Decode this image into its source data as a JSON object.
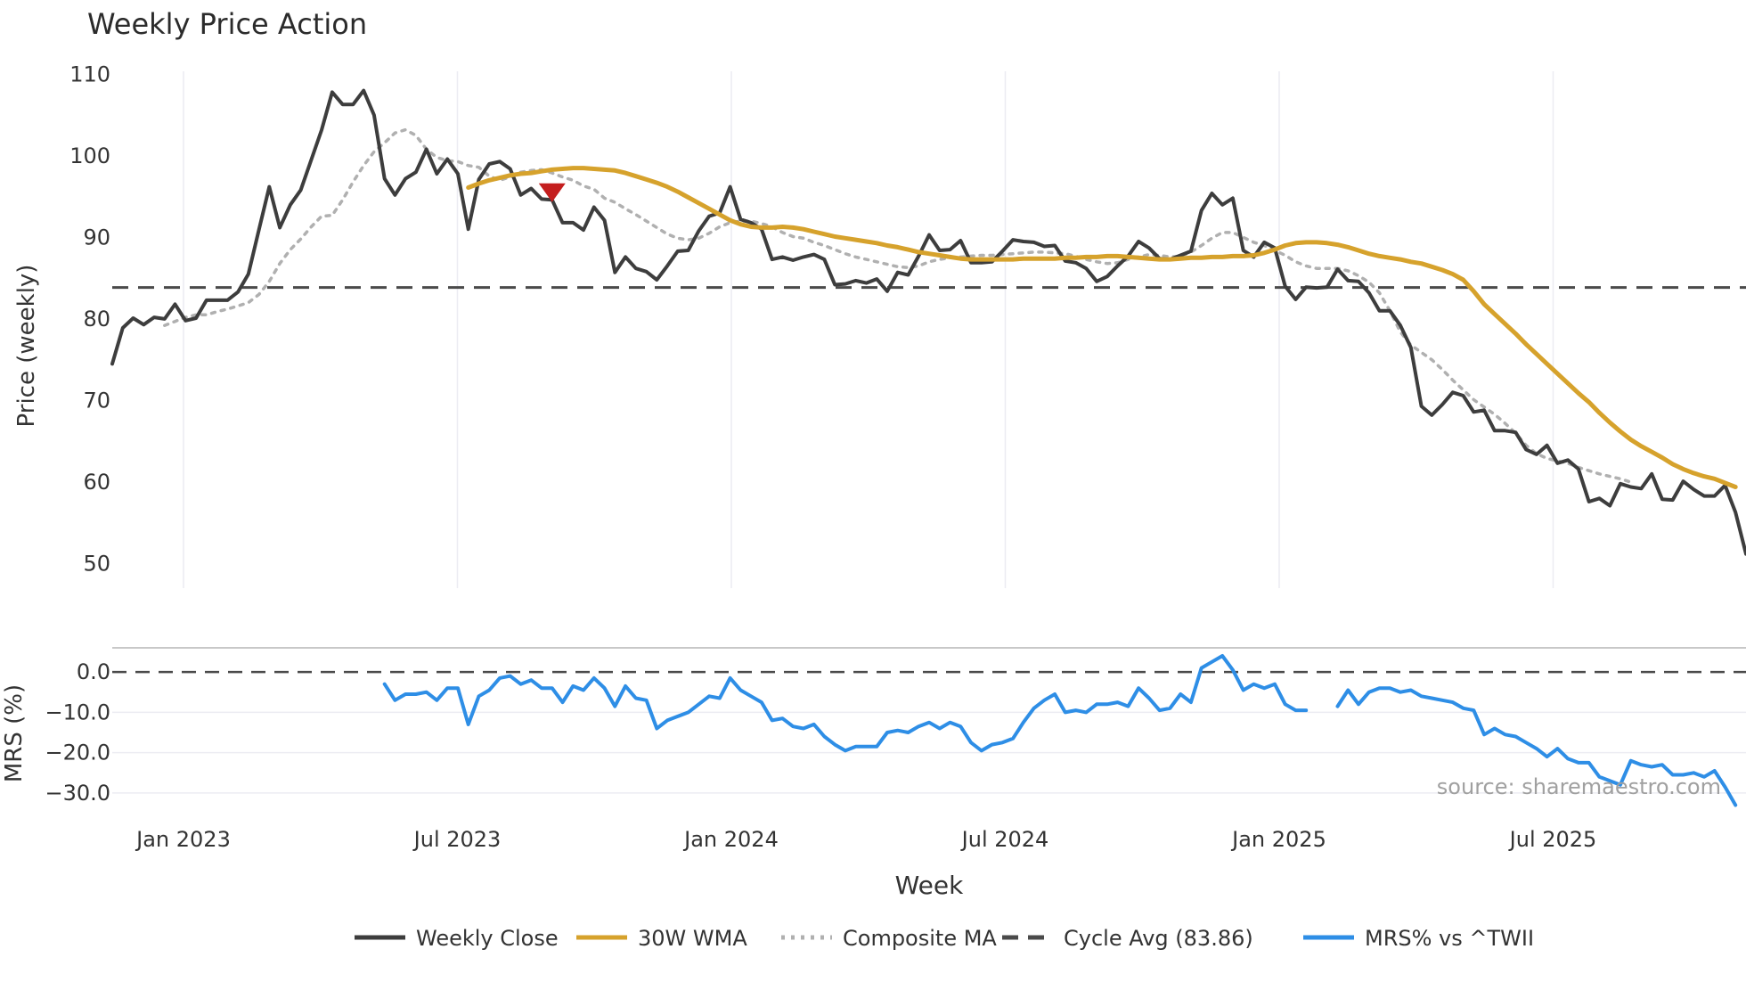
{
  "chart_data": [
    {
      "type": "line",
      "title": "Weekly Price Action",
      "xlabel": "Week",
      "ylabel": "Price (weekly)",
      "ylim": [
        47,
        112
      ],
      "yticks": [
        110,
        100,
        90,
        80,
        70,
        60,
        50
      ],
      "x_tick_labels": [
        "Jan 2023",
        "Jul 2023",
        "Jan 2024",
        "Jul 2024",
        "Jan 2025",
        "Jul 2025"
      ],
      "series": [
        {
          "name": "Weekly Close",
          "color": "#3d3d3d",
          "style": "solid",
          "values": [
            74.5,
            78.9,
            80.1,
            79.3,
            80.2,
            80.0,
            81.8,
            79.8,
            80.1,
            82.3,
            82.3,
            82.3,
            83.3,
            85.5,
            90.9,
            96.2,
            91.2,
            94.0,
            95.8,
            99.5,
            103.2,
            107.8,
            106.3,
            106.3,
            108.0,
            105.0,
            97.2,
            95.2,
            97.2,
            98.0,
            100.8,
            97.8,
            99.6,
            97.8,
            91.0,
            97.1,
            99.0,
            99.3,
            98.4,
            95.2,
            96.0,
            94.7,
            94.6,
            91.8,
            91.8,
            90.9,
            93.7,
            92.1,
            85.7,
            87.6,
            86.2,
            85.8,
            84.8,
            86.5,
            88.3,
            88.4,
            90.8,
            92.6,
            93.0,
            96.2,
            92.2,
            91.8,
            91.0,
            87.3,
            87.6,
            87.2,
            87.6,
            87.9,
            87.3,
            84.2,
            84.3,
            84.7,
            84.4,
            84.9,
            83.4,
            85.7,
            85.4,
            87.7,
            90.3,
            88.4,
            88.5,
            89.6,
            86.9,
            86.9,
            87.0,
            88.3,
            89.7,
            89.5,
            89.4,
            88.9,
            89.0,
            87.1,
            86.9,
            86.2,
            84.6,
            85.2,
            86.5,
            87.7,
            89.5,
            88.7,
            87.4,
            87.3,
            87.8,
            88.3,
            93.3,
            95.4,
            94.0,
            94.8,
            88.4,
            87.6,
            89.4,
            88.7,
            84.0,
            82.4,
            83.9,
            83.8,
            83.9,
            86.1,
            84.7,
            84.6,
            83.2,
            81.0,
            81.0,
            79.2,
            76.5,
            69.3,
            68.2,
            69.5,
            71.0,
            70.6,
            68.6,
            68.8,
            66.3,
            66.3,
            66.1,
            64.0,
            63.4,
            64.5,
            62.3,
            62.7,
            61.6,
            57.6,
            58.0,
            57.1,
            59.8,
            59.4,
            59.2,
            61.0,
            57.9,
            57.8,
            60.1,
            59.1,
            58.3,
            58.3,
            59.6,
            56.3,
            51.2
          ]
        },
        {
          "name": "30W WMA",
          "color": "#d6a22c",
          "style": "solid",
          "start_index": 34,
          "values": [
            96.1,
            96.6,
            97.0,
            97.3,
            97.6,
            97.8,
            97.9,
            98.1,
            98.3,
            98.4,
            98.5,
            98.5,
            98.4,
            98.3,
            98.2,
            97.9,
            97.5,
            97.1,
            96.7,
            96.2,
            95.6,
            94.9,
            94.2,
            93.5,
            92.8,
            92.1,
            91.6,
            91.3,
            91.2,
            91.2,
            91.3,
            91.2,
            91.0,
            90.7,
            90.4,
            90.1,
            89.9,
            89.7,
            89.5,
            89.3,
            89.0,
            88.8,
            88.5,
            88.2,
            88.0,
            87.8,
            87.6,
            87.4,
            87.3,
            87.3,
            87.3,
            87.3,
            87.3,
            87.4,
            87.4,
            87.4,
            87.4,
            87.5,
            87.5,
            87.6,
            87.6,
            87.7,
            87.7,
            87.6,
            87.5,
            87.4,
            87.3,
            87.3,
            87.4,
            87.5,
            87.5,
            87.6,
            87.6,
            87.7,
            87.7,
            87.8,
            88.1,
            88.5,
            89.0,
            89.3,
            89.4,
            89.4,
            89.3,
            89.1,
            88.8,
            88.4,
            88.0,
            87.7,
            87.5,
            87.3,
            87.0,
            86.8,
            86.4,
            86.0,
            85.5,
            84.8,
            83.4,
            81.8,
            80.6,
            79.4,
            78.2,
            76.9,
            75.7,
            74.5,
            73.3,
            72.1,
            70.9,
            69.8,
            68.5,
            67.3,
            66.2,
            65.2,
            64.4,
            63.7,
            63.0,
            62.2,
            61.6,
            61.1,
            60.7,
            60.4,
            59.9,
            59.4
          ]
        },
        {
          "name": "Composite MA",
          "color": "#b0b0b0",
          "style": "dotted",
          "start_index": 5,
          "values": [
            79.2,
            79.7,
            80.2,
            80.5,
            80.5,
            80.9,
            81.2,
            81.6,
            82.0,
            83.0,
            84.6,
            86.8,
            88.5,
            89.8,
            91.3,
            92.6,
            92.7,
            94.6,
            96.8,
            98.8,
            100.5,
            101.6,
            102.8,
            103.2,
            102.5,
            100.8,
            99.8,
            99.4,
            99.3,
            98.8,
            98.6,
            97.5,
            97.0,
            97.4,
            98.0,
            98.2,
            98.3,
            97.9,
            97.4,
            97.0,
            96.3,
            95.9,
            94.8,
            94.3,
            93.5,
            92.8,
            92.0,
            91.2,
            90.4,
            89.9,
            89.7,
            89.9,
            90.5,
            91.3,
            91.8,
            92.0,
            92.0,
            91.7,
            91.3,
            90.6,
            90.1,
            89.9,
            89.4,
            89.0,
            88.5,
            88.0,
            87.6,
            87.3,
            87.0,
            86.7,
            86.4,
            86.3,
            86.5,
            87.0,
            87.3,
            87.5,
            87.6,
            87.7,
            87.8,
            87.8,
            87.9,
            88.0,
            88.1,
            88.2,
            88.2,
            88.1,
            88.0,
            87.7,
            87.3,
            87.0,
            86.8,
            86.9,
            87.3,
            87.6,
            87.9,
            87.8,
            87.6,
            87.7,
            88.2,
            89.0,
            89.9,
            90.6,
            90.6,
            90.0,
            89.4,
            89.0,
            88.4,
            87.8,
            87.0,
            86.5,
            86.2,
            86.2,
            86.2,
            85.9,
            85.3,
            84.5,
            83.2,
            81.0,
            78.4,
            76.8,
            75.9,
            75.0,
            73.8,
            72.5,
            71.3,
            70.1,
            69.2,
            68.3,
            67.2,
            66.0,
            64.5,
            63.5,
            62.9,
            62.6,
            62.3,
            61.8,
            61.4,
            61.0,
            60.7,
            60.4,
            60.0
          ]
        },
        {
          "name": "Cycle Avg (83.86)",
          "color": "#4a4a4a",
          "style": "dashed",
          "constant": 83.86
        }
      ],
      "annotations": [
        {
          "type": "sell-marker",
          "color": "#c41e1e",
          "index": 42,
          "value": 95.2
        }
      ]
    },
    {
      "type": "line",
      "xlabel": "Week",
      "ylabel": "MRS (%)",
      "ylim": [
        -34,
        4
      ],
      "yticks": [
        "0.0",
        "−10.0",
        "−20.0",
        "−30.0"
      ],
      "series": [
        {
          "name": "MRS% vs ^TWII",
          "color": "#2e8ee6",
          "style": "solid",
          "start_index": 26,
          "values": [
            -3,
            -7,
            -5.5,
            -5.5,
            -5,
            -7,
            -4,
            -4,
            -13,
            -6,
            -4.5,
            -1.5,
            -1,
            -3,
            -2,
            -4,
            -4,
            -7.5,
            -3.5,
            -4.5,
            -1.5,
            -4,
            -8.5,
            -3.5,
            -6.5,
            -7,
            -14,
            -12,
            -11,
            -10,
            -8,
            -6,
            -6.5,
            -1.5,
            -4.5,
            -6,
            -7.5,
            -12,
            -11.5,
            -13.5,
            -14,
            -13,
            -16,
            -18,
            -19.5,
            -18.5,
            -18.5,
            -18.5,
            -15,
            -14.5,
            -15,
            -13.5,
            -12.5,
            -14,
            -12.5,
            -13.5,
            -17.5,
            -19.5,
            -18,
            -17.5,
            -16.5,
            -12.5,
            -9,
            -7,
            -5.5,
            -10,
            -9.5,
            -10,
            -8,
            -8,
            -7.5,
            -8.5,
            -4,
            -6.5,
            -9.5,
            -9,
            -5.5,
            -7.5,
            1,
            2.5,
            4,
            0.5,
            -4.5,
            -3,
            -4,
            -3,
            -8,
            -9.5,
            -9.5,
            null,
            null,
            -8.5,
            -4.5,
            -8,
            -5,
            -4,
            -4,
            -5,
            -4.5,
            -6,
            -6.5,
            -7,
            -7.5,
            -9,
            -9.5,
            -15.5,
            -14,
            -15.5,
            -16,
            -17.5,
            -19,
            -21,
            -19,
            -21.5,
            -22.5,
            -22.5,
            -26,
            -27,
            -28,
            -22,
            -23,
            -23.5,
            -23,
            -25.5,
            -25.5,
            -25,
            -26,
            -24.5,
            -28.5,
            -33
          ]
        }
      ],
      "reference_line": {
        "value": 0,
        "style": "dashed"
      },
      "annotation": "source: sharemaestro.com"
    }
  ],
  "legend": [
    {
      "label": "Weekly Close",
      "color": "#3d3d3d",
      "style": "solid"
    },
    {
      "label": "30W WMA",
      "color": "#d6a22c",
      "style": "solid"
    },
    {
      "label": "Composite MA",
      "color": "#b0b0b0",
      "style": "dotted"
    },
    {
      "label": "Cycle Avg (83.86)",
      "color": "#4a4a4a",
      "style": "dashed"
    },
    {
      "label": "MRS% vs ^TWII",
      "color": "#2e8ee6",
      "style": "solid"
    }
  ]
}
